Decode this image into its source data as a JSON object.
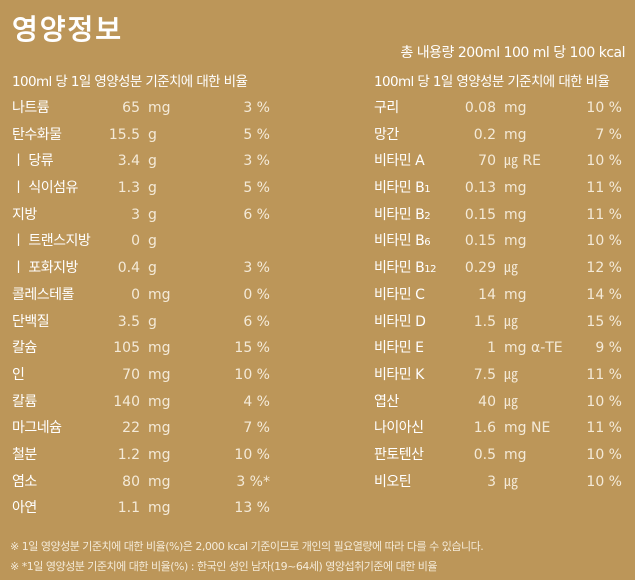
{
  "title": "영양정보",
  "total": "총 내용량 200ml 100 ml 당 100 kcal",
  "header_left": "100ml 당  1일 영양성분 기준치에 대한 비율",
  "header_right": "100ml 당  1일 영양성분 기준치에 대한 비율",
  "left": [
    {
      "name": "나트륨",
      "sub": "",
      "value": "65",
      "unit": "mg",
      "pct": "3 %"
    },
    {
      "name": "탄수화물",
      "sub": "",
      "value": "15.5",
      "unit": "g",
      "pct": "5 %"
    },
    {
      "name": "ㅣ 당류",
      "sub": "",
      "value": "3.4",
      "unit": "g",
      "pct": "3 %"
    },
    {
      "name": "ㅣ 식이섬유",
      "sub": "",
      "value": "1.3",
      "unit": "g",
      "pct": "5 %"
    },
    {
      "name": "지방",
      "sub": "",
      "value": "3",
      "unit": "g",
      "pct": "6 %"
    },
    {
      "name": "ㅣ 트랜스지방",
      "sub": "",
      "value": "0",
      "unit": "g",
      "pct": ""
    },
    {
      "name": "ㅣ  포화지방",
      "sub": "",
      "value": "0.4",
      "unit": "g",
      "pct": "3 %"
    },
    {
      "name": "콜레스테롤",
      "sub": "",
      "value": "0",
      "unit": "mg",
      "pct": "0 %"
    },
    {
      "name": "단백질",
      "sub": "",
      "value": "3.5",
      "unit": "g",
      "pct": "6 %"
    },
    {
      "name": "칼슘",
      "sub": "",
      "value": "105",
      "unit": "mg",
      "pct": "15 %"
    },
    {
      "name": "인",
      "sub": "",
      "value": "70",
      "unit": "mg",
      "pct": "10 %"
    },
    {
      "name": "칼륨",
      "sub": "",
      "value": "140",
      "unit": "mg",
      "pct": "4 %"
    },
    {
      "name": "마그네슘",
      "sub": "",
      "value": "22",
      "unit": "mg",
      "pct": "7 %"
    },
    {
      "name": "철분",
      "sub": "",
      "value": "1.2",
      "unit": "mg",
      "pct": "10 %"
    },
    {
      "name": "염소",
      "sub": "",
      "value": "80",
      "unit": "mg",
      "pct": "3 %*"
    },
    {
      "name": "아연",
      "sub": "",
      "value": "1.1",
      "unit": "mg",
      "pct": "13 %"
    }
  ],
  "right": [
    {
      "name": "구리",
      "sub": "",
      "value": "0.08",
      "unit": "mg",
      "pct": "10 %"
    },
    {
      "name": "망간",
      "sub": "",
      "value": "0.2",
      "unit": "mg",
      "pct": "7 %"
    },
    {
      "name": "비타민 A",
      "sub": "",
      "value": "70",
      "unit": "㎍ RE",
      "pct": "10 %"
    },
    {
      "name": "비타민 B",
      "sub": "1",
      "value": "0.13",
      "unit": "mg",
      "pct": "11 %"
    },
    {
      "name": "비타민 B",
      "sub": "2",
      "value": "0.15",
      "unit": "mg",
      "pct": "11 %"
    },
    {
      "name": "비타민 B",
      "sub": "6",
      "value": "0.15",
      "unit": "mg",
      "pct": "10 %"
    },
    {
      "name": "비타민 B",
      "sub": "12",
      "value": "0.29",
      "unit": "㎍",
      "pct": "12 %"
    },
    {
      "name": "비타민 C",
      "sub": "",
      "value": "14",
      "unit": "mg",
      "pct": "14 %"
    },
    {
      "name": "비타민 D",
      "sub": "",
      "value": "1.5",
      "unit": "㎍",
      "pct": "15 %"
    },
    {
      "name": "비타민 E",
      "sub": "",
      "value": "1",
      "unit": "mg α-TE",
      "pct": "9 %"
    },
    {
      "name": "비타민 K",
      "sub": "",
      "value": "7.5",
      "unit": "㎍",
      "pct": "11 %"
    },
    {
      "name": "엽산",
      "sub": "",
      "value": "40",
      "unit": "㎍",
      "pct": "10 %"
    },
    {
      "name": "나이아신",
      "sub": "",
      "value": "1.6",
      "unit": "mg NE",
      "pct": "11 %"
    },
    {
      "name": "판토텐산",
      "sub": "",
      "value": "0.5",
      "unit": "mg",
      "pct": "10 %"
    },
    {
      "name": "비오틴",
      "sub": "",
      "value": "3",
      "unit": "㎍",
      "pct": "10 %"
    }
  ],
  "notes": [
    "※ 1일 영양성분 기준치에 대한 비율(%)은 2,000 kcal 기준이므로 개인의 필요열량에 따라 다를 수 있습니다.",
    "※ *1일 영양성분 기준치에 대한 비율(%) : 한국인 성인 남자(19~64세) 영양섭취기준에 대한 비율"
  ],
  "colors": {
    "background": "#bc9659",
    "text": "#ffffff"
  }
}
